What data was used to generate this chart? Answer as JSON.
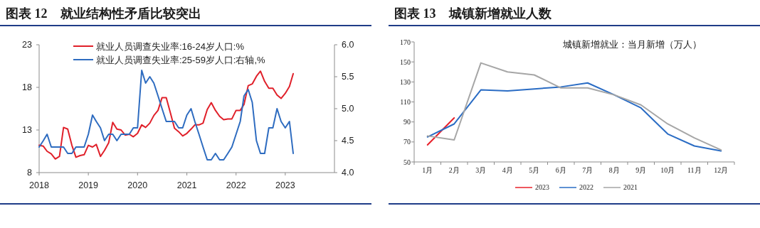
{
  "chart_data": [
    {
      "type": "line",
      "title": "图表 12　就业结构性矛盾比较突出",
      "x": [
        "2018-01",
        "2018-02",
        "2018-03",
        "2018-04",
        "2018-05",
        "2018-06",
        "2018-07",
        "2018-08",
        "2018-09",
        "2018-10",
        "2018-11",
        "2018-12",
        "2019-01",
        "2019-02",
        "2019-03",
        "2019-04",
        "2019-05",
        "2019-06",
        "2019-07",
        "2019-08",
        "2019-09",
        "2019-10",
        "2019-11",
        "2019-12",
        "2020-01",
        "2020-02",
        "2020-03",
        "2020-04",
        "2020-05",
        "2020-06",
        "2020-07",
        "2020-08",
        "2020-09",
        "2020-10",
        "2020-11",
        "2020-12",
        "2021-01",
        "2021-02",
        "2021-03",
        "2021-04",
        "2021-05",
        "2021-06",
        "2021-07",
        "2021-08",
        "2021-09",
        "2021-10",
        "2021-11",
        "2021-12",
        "2022-01",
        "2022-02",
        "2022-03",
        "2022-04",
        "2022-05",
        "2022-06",
        "2022-07",
        "2022-08",
        "2022-09",
        "2022-10",
        "2022-11",
        "2022-12",
        "2023-01",
        "2023-02",
        "2023-03"
      ],
      "xlim": [
        "2018-01",
        "2024-01"
      ],
      "xticks": [
        {
          "value": "2018-01",
          "label": "2018"
        },
        {
          "value": "2019-01",
          "label": "2019"
        },
        {
          "value": "2020-01",
          "label": "2020"
        },
        {
          "value": "2021-01",
          "label": "2021"
        },
        {
          "value": "2022-01",
          "label": "2022"
        },
        {
          "value": "2023-01",
          "label": "2023"
        }
      ],
      "ylim": [
        8,
        23
      ],
      "yticks": [
        8,
        13,
        18,
        23
      ],
      "y2lim": [
        4,
        6
      ],
      "y2ticks": [
        {
          "value": 4,
          "label": "4.0"
        },
        {
          "value": 4.5,
          "label": "4.5"
        },
        {
          "value": 5,
          "label": "5.0"
        },
        {
          "value": 5.5,
          "label": "5.5"
        },
        {
          "value": 6,
          "label": "6.0"
        }
      ],
      "legend": "top",
      "series": [
        {
          "name": "就业人员调查失业率:16-24岁人口:%",
          "color": "#e0202a",
          "values": [
            11.2,
            11.1,
            10.5,
            10.2,
            9.6,
            9.9,
            13.3,
            13.1,
            11.2,
            9.8,
            10.0,
            10.1,
            11.2,
            11.0,
            11.3,
            9.9,
            10.6,
            11.5,
            13.9,
            13.1,
            13.0,
            12.4,
            12.5,
            12.2,
            12.6,
            13.6,
            13.3,
            13.8,
            14.7,
            15.3,
            16.8,
            16.8,
            15.0,
            13.2,
            12.8,
            12.3,
            12.6,
            13.1,
            13.6,
            13.6,
            13.8,
            15.4,
            16.2,
            15.3,
            14.6,
            14.2,
            14.3,
            14.3,
            15.3,
            15.3,
            16.0,
            18.2,
            18.4,
            19.3,
            19.9,
            18.7,
            17.9,
            17.9,
            17.1,
            16.7,
            17.3,
            18.1,
            19.6
          ]
        },
        {
          "name": "就业人员调查失业率:25-59岁人口:右轴,%",
          "color": "#2e6cc0",
          "axis": "y2",
          "values": [
            4.4,
            4.5,
            4.6,
            4.4,
            4.4,
            4.4,
            4.4,
            4.3,
            4.3,
            4.4,
            4.4,
            4.4,
            4.6,
            4.9,
            4.8,
            4.7,
            4.5,
            4.6,
            4.6,
            4.5,
            4.6,
            4.6,
            4.6,
            4.7,
            4.7,
            5.6,
            5.4,
            5.5,
            5.4,
            5.2,
            5.0,
            4.8,
            4.8,
            4.8,
            4.7,
            4.7,
            4.9,
            5.0,
            4.8,
            4.6,
            4.4,
            4.2,
            4.2,
            4.3,
            4.2,
            4.2,
            4.3,
            4.4,
            4.6,
            4.8,
            5.2,
            5.3,
            5.1,
            4.5,
            4.3,
            4.3,
            4.7,
            4.7,
            5.0,
            4.8,
            4.7,
            4.8,
            4.3
          ]
        }
      ]
    },
    {
      "type": "line",
      "title": "图表 13　城镇新增就业人数",
      "subtitle": "城镇新增就业：当月新增（万人）",
      "categories": [
        "1月",
        "2月",
        "3月",
        "4月",
        "5月",
        "6月",
        "7月",
        "8月",
        "9月",
        "10月",
        "11月",
        "12月"
      ],
      "ylim": [
        50,
        170
      ],
      "yticks": [
        50,
        70,
        90,
        110,
        130,
        150,
        170
      ],
      "legend": "bottom",
      "series": [
        {
          "name": "2023",
          "color": "#e8202a",
          "values": [
            67,
            94,
            null,
            null,
            null,
            null,
            null,
            null,
            null,
            null,
            null,
            null
          ]
        },
        {
          "name": "2022",
          "color": "#2a6cc4",
          "values": [
            75,
            88,
            122,
            121,
            123,
            125,
            129,
            117,
            104,
            78,
            66,
            61
          ]
        },
        {
          "name": "2021",
          "color": "#a6a6a6",
          "values": [
            76,
            72,
            149,
            140,
            137,
            124,
            124,
            117,
            107,
            88,
            74,
            62
          ]
        }
      ]
    }
  ]
}
